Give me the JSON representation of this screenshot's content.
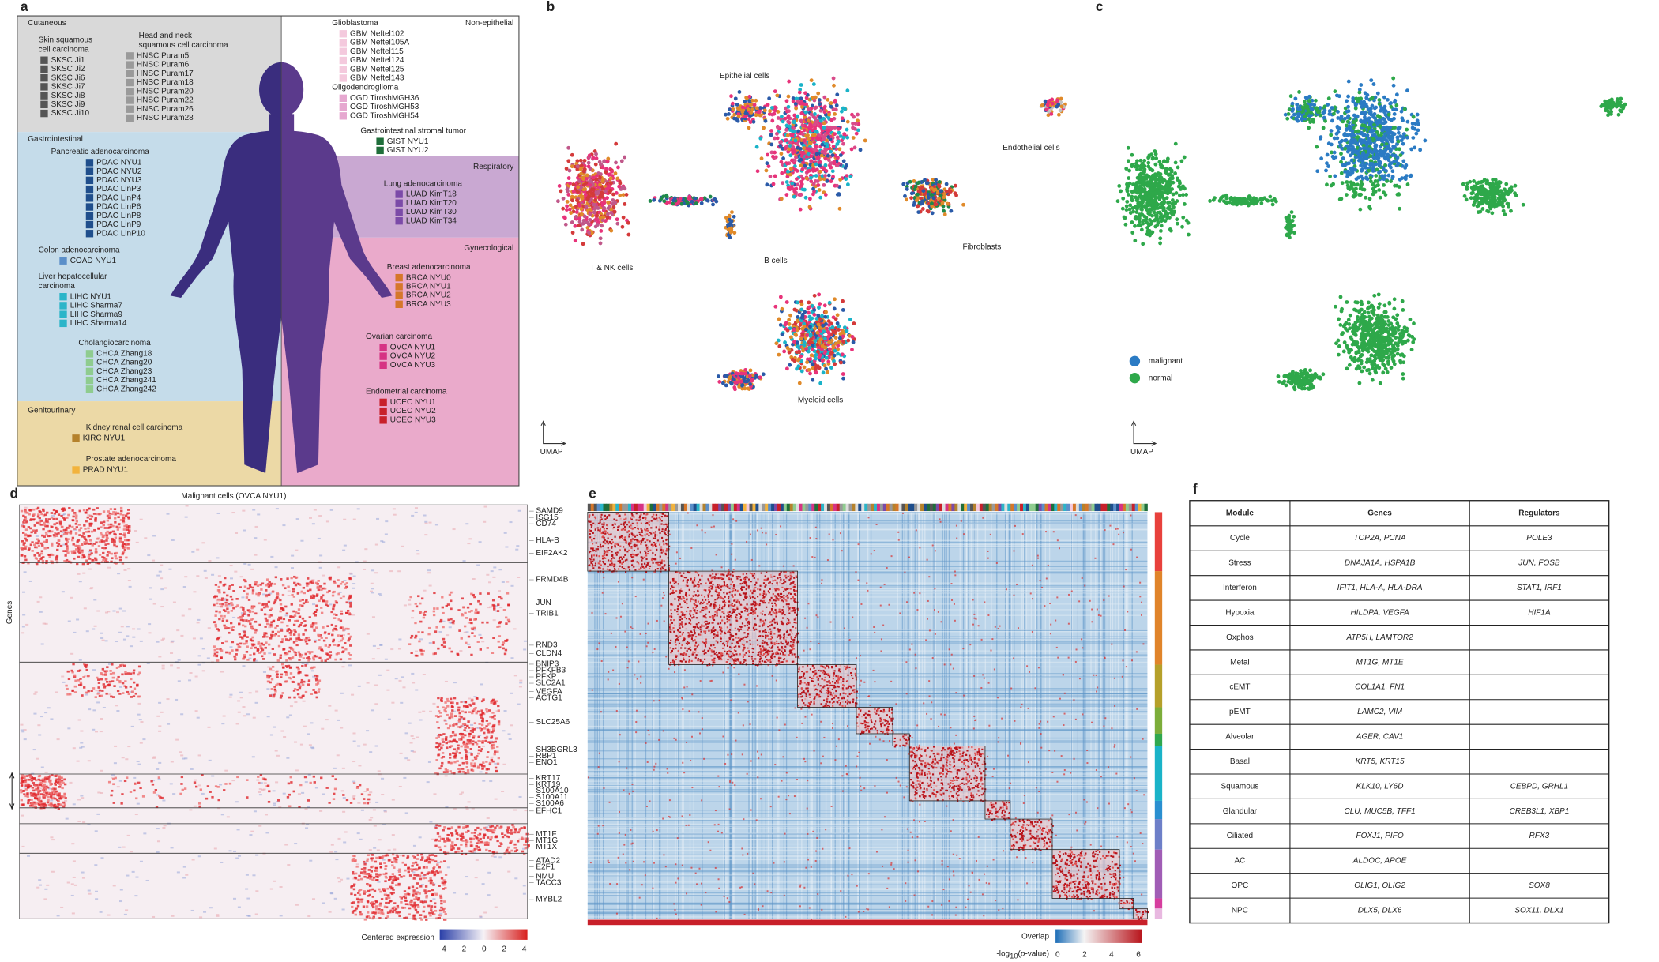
{
  "panel_a": {
    "label": "a",
    "sections": [
      {
        "title": "Cutaneous",
        "groups": [
          {
            "title": [
              "Skin squamous",
              "cell carcinoma"
            ],
            "color": "#555555",
            "items": [
              "SKSC Ji1",
              "SKSC Ji2",
              "SKSC Ji6",
              "SKSC Ji7",
              "SKSC Ji8",
              "SKSC Ji9",
              "SKSC Ji10"
            ]
          },
          {
            "title": [
              "Head and neck",
              "squamous cell carcinoma"
            ],
            "color": "#9a9a9a",
            "items": [
              "HNSC Puram5",
              "HNSC Puram6",
              "HNSC Puram17",
              "HNSC Puram18",
              "HNSC Puram20",
              "HNSC Puram22",
              "HNSC Puram26",
              "HNSC Puram28"
            ]
          }
        ]
      },
      {
        "title": "Gastrointestinal",
        "groups": [
          {
            "title": [
              "Pancreatic adenocarcinoma"
            ],
            "color": "#1f4e8c",
            "items": [
              "PDAC NYU1",
              "PDAC NYU2",
              "PDAC NYU3",
              "PDAC LinP3",
              "PDAC LinP4",
              "PDAC LinP6",
              "PDAC LinP8",
              "PDAC LinP9",
              "PDAC LinP10"
            ]
          },
          {
            "title": [
              "Colon adenocarcinoma"
            ],
            "color": "#5b8fc9",
            "items": [
              "COAD NYU1"
            ]
          },
          {
            "title": [
              "Liver hepatocellular",
              "carcinoma"
            ],
            "color": "#2bb5c9",
            "items": [
              "LIHC NYU1",
              "LIHC Sharma7",
              "LIHC Sharma9",
              "LIHC Sharma14"
            ]
          },
          {
            "title": [
              "Cholangiocarcinoma"
            ],
            "color": "#8fcc8f",
            "items": [
              "CHCA Zhang18",
              "CHCA Zhang20",
              "CHCA Zhang23",
              "CHCA Zhang241",
              "CHCA Zhang242"
            ]
          }
        ]
      },
      {
        "title": "Genitourinary",
        "groups": [
          {
            "title": [
              "Kidney renal cell carcinoma"
            ],
            "color": "#b5822c",
            "items": [
              "KIRC NYU1"
            ]
          },
          {
            "title": [
              "Prostate adenocarcinoma"
            ],
            "color": "#f2b33d",
            "items": [
              "PRAD NYU1"
            ]
          }
        ]
      },
      {
        "title": "Non-epithelial",
        "groups": [
          {
            "title": [
              "Glioblastoma"
            ],
            "color": "#f4c9dd",
            "items": [
              "GBM Neftel102",
              "GBM Neftel105A",
              "GBM Neftel115",
              "GBM Neftel124",
              "GBM Neftel125",
              "GBM Neftel143"
            ]
          },
          {
            "title": [
              "Oligodendroglioma"
            ],
            "color": "#e6a8d0",
            "items": [
              "OGD TiroshMGH36",
              "OGD TiroshMGH53",
              "OGD TiroshMGH54"
            ]
          },
          {
            "title": [
              "Gastrointestinal stromal tumor"
            ],
            "color": "#1f6e3a",
            "items": [
              "GIST NYU1",
              "GIST NYU2"
            ]
          }
        ]
      },
      {
        "title": "Respiratory",
        "groups": [
          {
            "title": [
              "Lung adenocarcinoma"
            ],
            "color": "#7b4aa8",
            "items": [
              "LUAD KimT18",
              "LUAD KimT20",
              "LUAD KimT30",
              "LUAD KimT34"
            ]
          }
        ]
      },
      {
        "title": "Gynecological",
        "groups": [
          {
            "title": [
              "Breast adenocarcinoma"
            ],
            "color": "#d6772a",
            "items": [
              "BRCA NYU0",
              "BRCA NYU1",
              "BRCA NYU2",
              "BRCA NYU3"
            ]
          },
          {
            "title": [
              "Ovarian carcinoma"
            ],
            "color": "#d63384",
            "items": [
              "OVCA NYU1",
              "OVCA NYU2",
              "OVCA NYU3"
            ]
          },
          {
            "title": [
              "Endometrial carcinoma"
            ],
            "color": "#c8202a",
            "items": [
              "UCEC NYU1",
              "UCEC NYU2",
              "UCEC NYU3"
            ]
          }
        ]
      }
    ]
  },
  "panel_b": {
    "label": "b",
    "clusters": [
      "Epithelial cells",
      "Endothelial cells",
      "T & NK cells",
      "B cells",
      "Fibroblasts",
      "Myeloid cells"
    ],
    "axis": "UMAP"
  },
  "panel_c": {
    "label": "c",
    "legend": [
      {
        "name": "malignant",
        "color": "#2b7bc4"
      },
      {
        "name": "normal",
        "color": "#2ea84a"
      }
    ],
    "axis": "UMAP"
  },
  "panel_d": {
    "label": "d",
    "title": "Malignant cells (OVCA NYU1)",
    "y_label": "Genes",
    "gene_groups": [
      {
        "color": "#d8874a",
        "genes": [
          "SAMD9",
          "ISG15",
          "CD74",
          "HLA-B",
          "EIF2AK2"
        ]
      },
      {
        "color": "#e07a30",
        "genes": [
          "FRMD4B",
          "JUN",
          "TRIB1",
          "RND3",
          "CLDN4"
        ]
      },
      {
        "color": "#8aaa3a",
        "genes": [
          "BNIP3",
          "PFKFB3",
          "PFKP",
          "SLC2A1",
          "VEGFA",
          "ACTG1"
        ]
      },
      {
        "color": "#1ab3c8",
        "genes": [
          "SLC25A6",
          "SH3BGRL3",
          "RBP1",
          "ENO1",
          "KRT17",
          "KRT19",
          "S100A10",
          "S100A11",
          "S100A6"
        ]
      },
      {
        "color": "#e8458a",
        "genes": [
          "EFHC1"
        ]
      },
      {
        "color": "#1f9a60",
        "genes": [
          "MT1F",
          "MT1G",
          "MT1X"
        ]
      },
      {
        "color": "#e8413c",
        "genes": [
          "ATAD2",
          "E2F1",
          "NMU",
          "TACC3",
          "MYBL2"
        ]
      }
    ],
    "colorbar": {
      "title": "Centered expression",
      "ticks": [
        4,
        2,
        0,
        2,
        4
      ]
    }
  },
  "panel_e": {
    "label": "e",
    "colorbar": {
      "title": "Overlap",
      "label": {
        "prefix": "-log",
        "subscript": "10",
        "open": "(",
        "italic": "p",
        "suffix": "-value)"
      },
      "ticks": [
        0,
        2,
        4,
        6
      ]
    }
  },
  "panel_f": {
    "label": "f",
    "header": [
      "Module",
      "Genes",
      "Regulators"
    ],
    "rows": [
      {
        "module": "Cycle",
        "color": "#e8413c",
        "genes": "TOP2A, PCNA",
        "regulators": "POLE3"
      },
      {
        "module": "Stress",
        "color": "#e0842a",
        "genes": "DNAJA1A, HSPA1B",
        "regulators": "JUN, FOSB"
      },
      {
        "module": "Interferon",
        "color": "#b5a02a",
        "genes": "IFIT1, HLA-A, HLA-DRA",
        "regulators": "STAT1, IRF1"
      },
      {
        "module": "Hypoxia",
        "color": "#7cad3a",
        "genes": "HILDPA, VEGFA",
        "regulators": "HIF1A"
      },
      {
        "module": "Oxphos",
        "color": "#2fa84f",
        "genes": "ATP5H, LAMTOR2",
        "regulators": ""
      },
      {
        "module": "Metal",
        "color": "#1aa886",
        "genes": "MT1G, MT1E",
        "regulators": ""
      },
      {
        "module": "cEMT",
        "color": "#1fb5a8",
        "genes": "COL1A1, FN1",
        "regulators": ""
      },
      {
        "module": "pEMT",
        "color": "#1ab3c8",
        "genes": "LAMC2, VIM",
        "regulators": ""
      },
      {
        "module": "Alveolar",
        "color": "#2a8fd0",
        "genes": "AGER, CAV1",
        "regulators": ""
      },
      {
        "module": "Basal",
        "color": "#6d7fc8",
        "genes": "KRT5, KRT15",
        "regulators": ""
      },
      {
        "module": "Squamous",
        "color": "#a05db5",
        "genes": "KLK10, LY6D",
        "regulators": "CEBPD, GRHL1"
      },
      {
        "module": "Glandular",
        "color": "#d63d9e",
        "genes": "CLU, MUC5B, TFF1",
        "regulators": "CREB3L1, XBP1"
      },
      {
        "module": "Ciliated",
        "color": "#e8458a",
        "genes": "FOXJ1, PIFO",
        "regulators": "RFX3"
      },
      {
        "module": "AC",
        "color": "#c9a0c9",
        "genes": "ALDOC, APOE",
        "regulators": ""
      },
      {
        "module": "OPC",
        "color": "#e8b8e0",
        "genes": "OLIG1, OLIG2",
        "regulators": "SOX8"
      },
      {
        "module": "NPC",
        "color": "#f2c8ea",
        "genes": "DLX5, DLX6",
        "regulators": "SOX11, DLX1"
      }
    ]
  }
}
